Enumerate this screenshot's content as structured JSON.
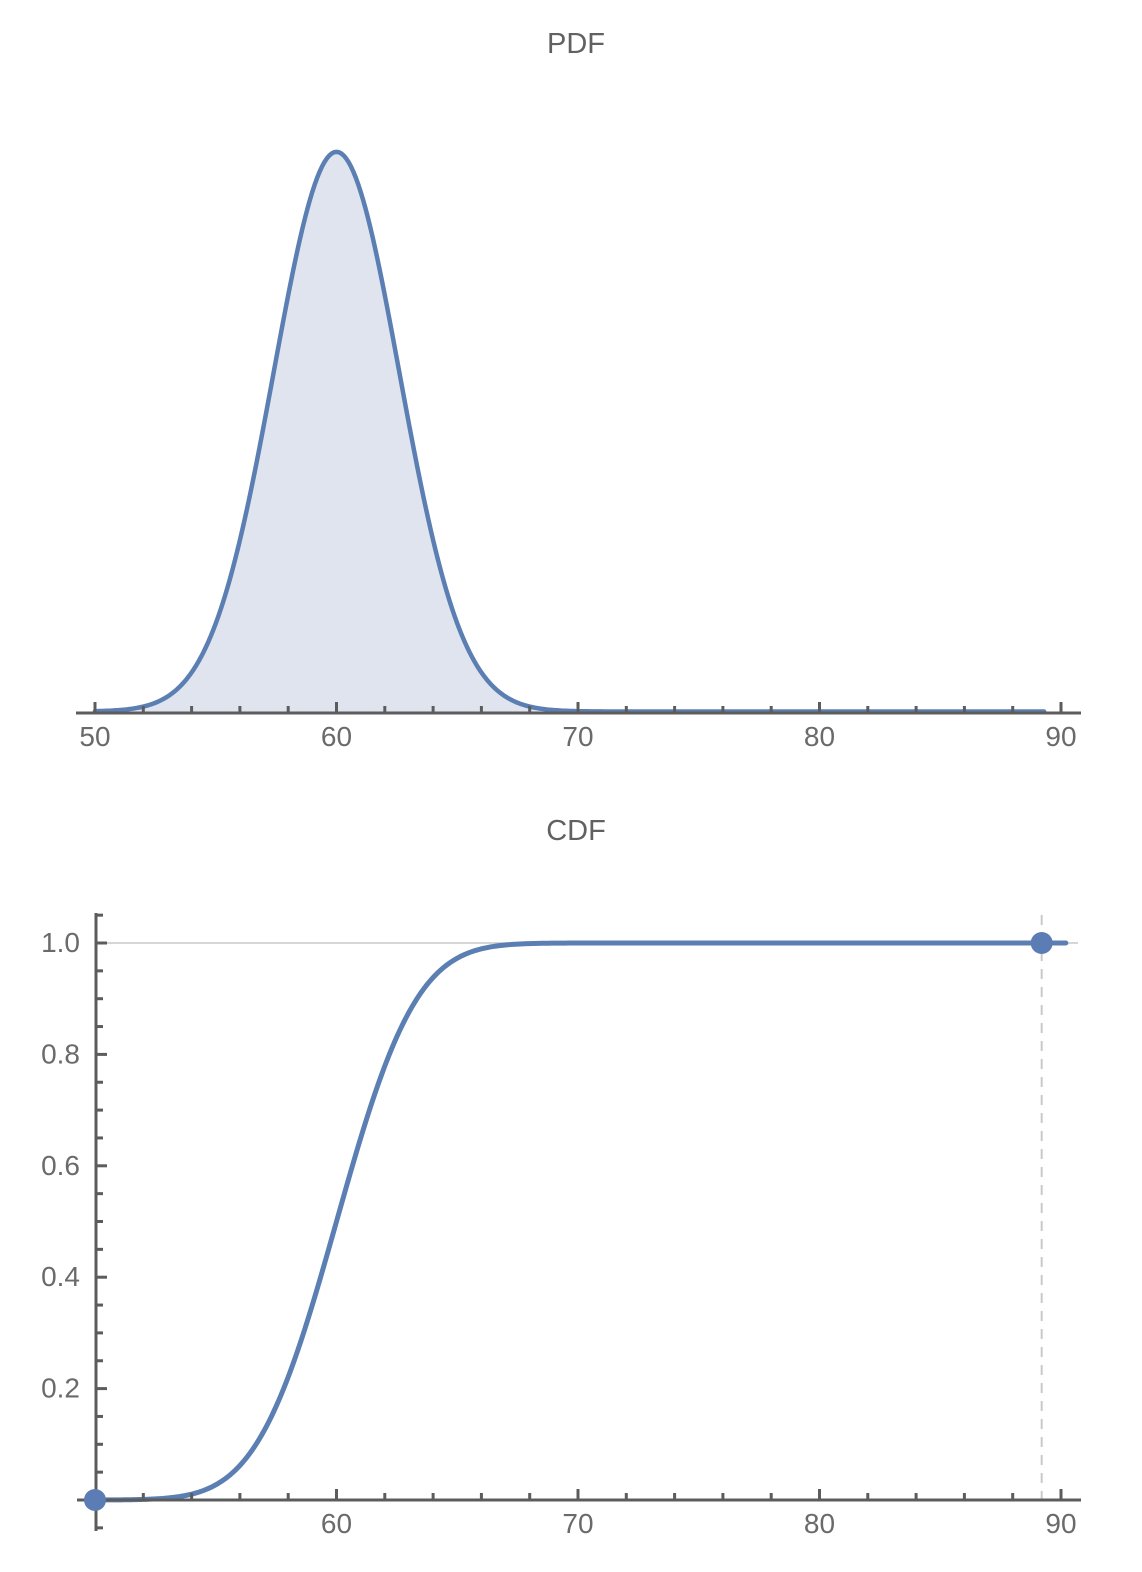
{
  "colors": {
    "curve_stroke": "#5b7fb2",
    "curve_fill": "#dfe4ee",
    "dot_fill": "#5b7cb4",
    "axis": "#5c5c5c",
    "tick_label": "#6a6a6a",
    "title": "#616161",
    "gridline": "#c8c8c8",
    "dashed_guide": "#c9c9c9",
    "background": "#ffffff"
  },
  "chart_data": [
    {
      "type": "area",
      "title": "PDF",
      "xlabel": "",
      "ylabel": "",
      "distribution": {
        "family": "normal",
        "mean": 60,
        "stddev": 2.6,
        "pdf_max": 0.1534
      },
      "x_axis_range": [
        49.2,
        90.8
      ],
      "curve_x_range": [
        50,
        89.3
      ],
      "x_ticks": [
        50,
        60,
        70,
        80,
        90
      ],
      "x_tick_labels": [
        "50",
        "60",
        "70",
        "80",
        "90"
      ],
      "x_minor_tick_step": 2,
      "grid": "off",
      "legend": "none",
      "x": [
        50,
        51,
        52,
        53,
        54,
        55,
        56,
        57,
        58,
        59,
        60,
        61,
        62,
        63,
        64,
        65,
        66,
        67,
        68,
        69,
        70,
        75,
        80,
        85,
        89.3
      ],
      "y": [
        0.0001,
        0.0004,
        0.0014,
        0.0041,
        0.0107,
        0.0241,
        0.047,
        0.0789,
        0.1141,
        0.1425,
        0.1534,
        0.1425,
        0.1141,
        0.0789,
        0.047,
        0.0241,
        0.0107,
        0.0041,
        0.0014,
        0.0004,
        0.0001,
        0.0,
        0.0,
        0.0,
        0.0
      ]
    },
    {
      "type": "line",
      "title": "CDF",
      "xlabel": "",
      "ylabel": "",
      "distribution": {
        "family": "normal",
        "mean": 60,
        "stddev": 2.6
      },
      "x_axis_range": [
        49.2,
        90.8
      ],
      "y_axis_range": [
        -0.056,
        1.054
      ],
      "curve_x_range": [
        50,
        90.2
      ],
      "x_ticks": [
        60,
        70,
        80,
        90
      ],
      "x_tick_labels": [
        "60",
        "70",
        "80",
        "90"
      ],
      "x_minor_tick_step": 2,
      "y_ticks": [
        0.2,
        0.4,
        0.6,
        0.8,
        1.0
      ],
      "y_tick_labels": [
        "0.2",
        "0.4",
        "0.6",
        "0.8",
        "1.0"
      ],
      "y_minor_tick_step": 0.05,
      "gridline_y": 1.0,
      "dashed_guide_x": 89.2,
      "endpoints": [
        {
          "x": 50,
          "y": 0
        },
        {
          "x": 89.2,
          "y": 1
        }
      ],
      "grid": "partial",
      "legend": "none",
      "x": [
        50,
        51,
        52,
        53,
        54,
        55,
        56,
        57,
        58,
        59,
        60,
        61,
        62,
        63,
        64,
        65,
        66,
        67,
        68,
        69,
        70,
        75,
        80,
        85,
        89.2
      ],
      "y": [
        0.0001,
        0.0003,
        0.001,
        0.0035,
        0.0105,
        0.0272,
        0.062,
        0.1243,
        0.2209,
        0.3502,
        0.5,
        0.6498,
        0.7791,
        0.8757,
        0.938,
        0.9728,
        0.9895,
        0.9965,
        0.999,
        0.9997,
        0.9999,
        1.0,
        1.0,
        1.0,
        1.0
      ]
    }
  ]
}
